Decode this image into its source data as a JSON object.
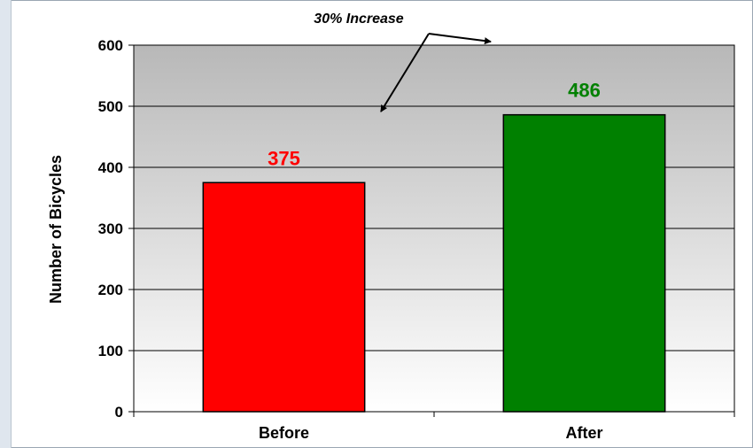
{
  "chart_data": {
    "type": "bar",
    "title": "",
    "ylabel": "Number of Bicycles",
    "xlabel": "",
    "categories": [
      "Before",
      "After"
    ],
    "values": [
      375,
      486
    ],
    "data_labels": [
      "375",
      "486"
    ],
    "bar_colors": [
      "#ff0000",
      "#008000"
    ],
    "label_colors": [
      "#ff0000",
      "#008000"
    ],
    "ylim": [
      0,
      600
    ],
    "yticks": [
      0,
      100,
      200,
      300,
      400,
      500,
      600
    ],
    "ytick_labels": [
      "0",
      "100",
      "200",
      "300",
      "400",
      "500",
      "600"
    ],
    "grid": true,
    "legend": "none",
    "annotation": {
      "text": "30% Increase"
    }
  }
}
